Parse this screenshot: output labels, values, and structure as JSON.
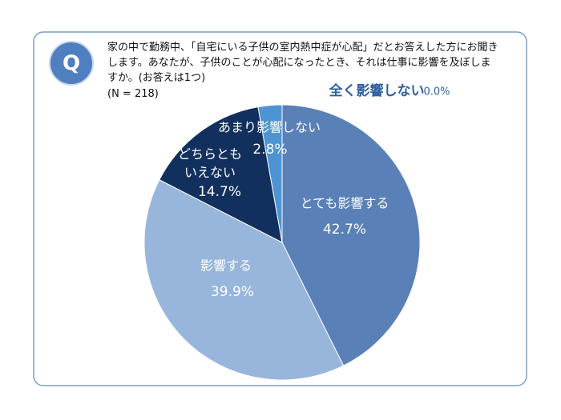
{
  "badge": "Q",
  "chart_data": {
    "type": "pie",
    "title": "家の中で勤務中、「自宅にいる子供の室内熱中症が心配」だとお答えした方にお聞きします。あなたが、子供のことが心配になったとき、それは仕事に影響を及ぼしますか。(お答えは1つ)",
    "subtitle": "(N = 218)",
    "categories": [
      "とても影響する",
      "影響する",
      "どちらとも\nいえない",
      "あまり影響しない",
      "全く影響しない"
    ],
    "values": [
      42.7,
      39.9,
      14.7,
      2.8,
      0.0
    ],
    "value_labels": [
      "42.7%",
      "39.9%",
      "14.7%",
      "2.8%",
      "0.0%"
    ],
    "colors": [
      "#5a80b8",
      "#98b6dc",
      "#12305e",
      "#4f94d2",
      "#2f5fa0"
    ]
  }
}
